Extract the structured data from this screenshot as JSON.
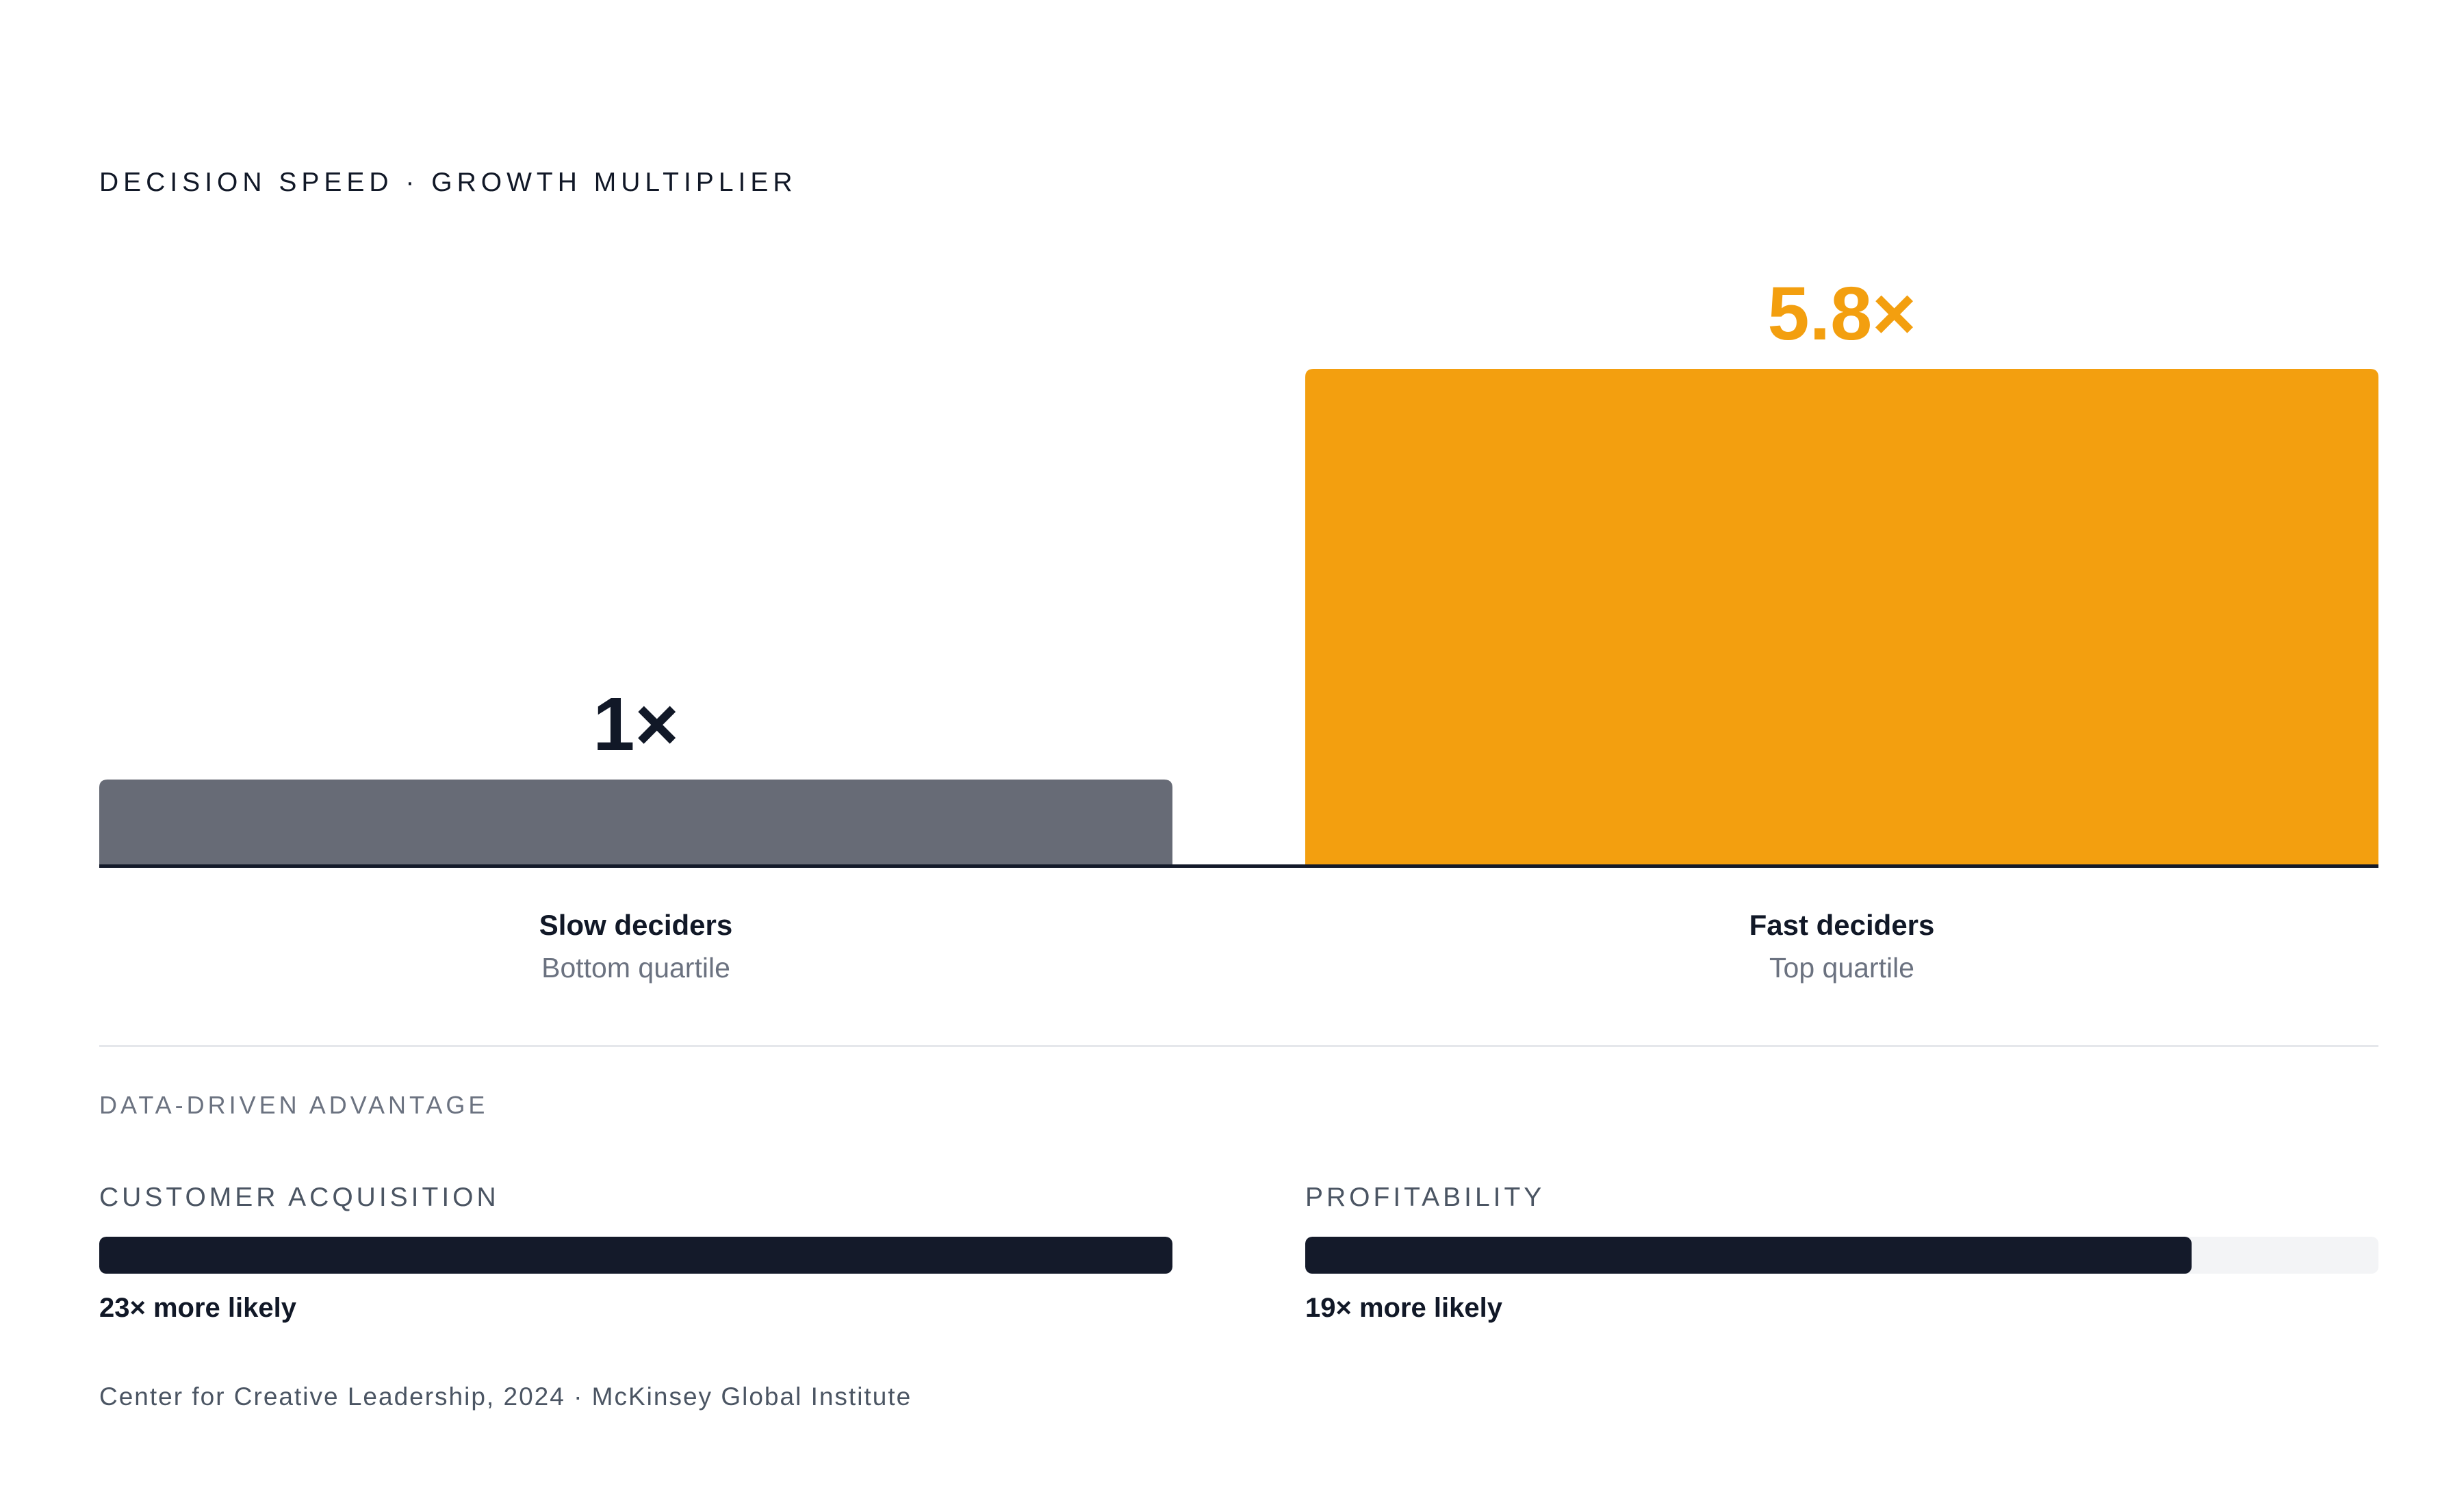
{
  "title": "DECISION SPEED · GROWTH MULTIPLIER",
  "chart_data": {
    "type": "bar",
    "categories": [
      "Slow deciders",
      "Fast deciders"
    ],
    "subcategories": [
      "Bottom quartile",
      "Top quartile"
    ],
    "values": [
      1,
      5.8
    ],
    "value_labels": [
      "1×",
      "5.8×"
    ],
    "colors": [
      "#676b76",
      "#f39f0f"
    ],
    "value_label_colors": [
      "#111827",
      "#f39f0f"
    ],
    "ylim": [
      0,
      5.8
    ]
  },
  "advantage": {
    "section_label": "DATA-DRIVEN ADVANTAGE",
    "metrics": [
      {
        "label": "CUSTOMER ACQUISITION",
        "value_text": "23× more likely",
        "value": 23,
        "fraction": 1.0
      },
      {
        "label": "PROFITABILITY",
        "value_text": "19× more likely",
        "value": 19,
        "fraction": 0.826
      }
    ]
  },
  "source": "Center for Creative Leadership, 2024 · McKinsey Global Institute"
}
